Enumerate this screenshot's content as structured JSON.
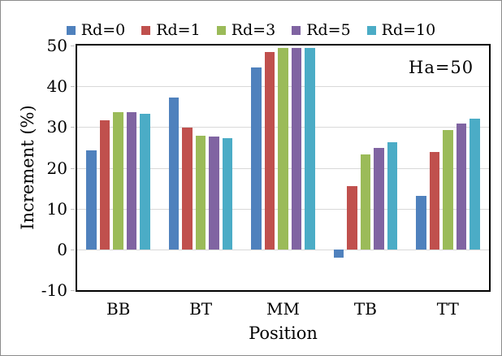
{
  "window": {
    "background": "#ffffff",
    "frame_border_color": "#8c8c8c"
  },
  "chart_data": {
    "type": "bar",
    "title": "",
    "categories": [
      "BB",
      "BT",
      "MM",
      "TB",
      "TT"
    ],
    "series": [
      {
        "name": "Rd=0",
        "color": "#4F81BD",
        "values": [
          24.3,
          37.3,
          44.6,
          -2.0,
          13.1
        ]
      },
      {
        "name": "Rd=1",
        "color": "#C0504D",
        "values": [
          31.6,
          29.9,
          48.4,
          15.6,
          23.8
        ]
      },
      {
        "name": "Rd=3",
        "color": "#9BBB59",
        "values": [
          33.6,
          27.8,
          49.4,
          23.2,
          29.2
        ]
      },
      {
        "name": "Rd=5",
        "color": "#8064A2",
        "values": [
          33.6,
          27.6,
          49.5,
          24.8,
          30.8
        ]
      },
      {
        "name": "Rd=10",
        "color": "#4BACC6",
        "values": [
          33.3,
          27.2,
          49.5,
          26.2,
          32.1
        ]
      }
    ],
    "xlabel": "Position",
    "ylabel": "Increment (%)",
    "ylim": [
      -10,
      50
    ],
    "yticks": [
      50,
      40,
      30,
      20,
      10,
      0,
      -10
    ],
    "grid": "horizontal",
    "gridline_color": "#d9d9d9",
    "legend_position": "top-center",
    "annotation": "Ha=50"
  }
}
